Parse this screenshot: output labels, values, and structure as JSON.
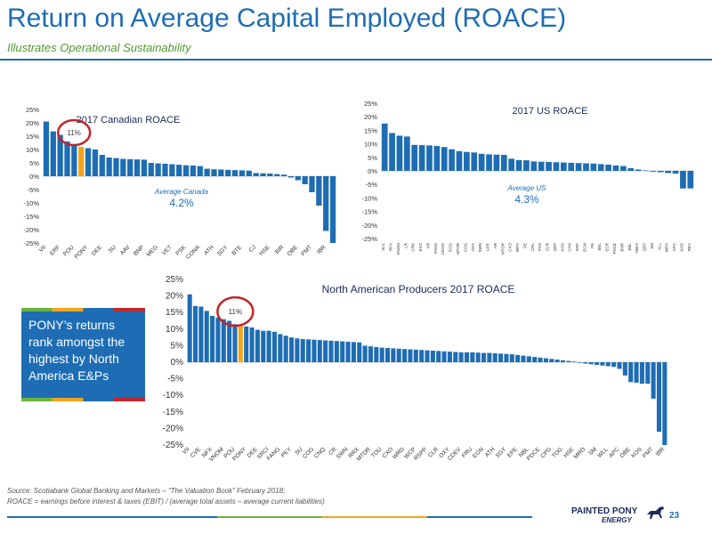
{
  "header": {
    "title": "Return on Average Capital Employed (ROACE)",
    "subtitle": "Illustrates Operational Sustainability"
  },
  "callout": {
    "text": "PONY’s returns rank amongst the highest by North America E&Ps"
  },
  "footer": {
    "source": "Source: Scotiabank Global Banking and Markets – “The Valuation Book” February 2018;",
    "definition": "ROACE = earnings before interest & taxes (EBIT) / (average total assets – average current liabilities)",
    "logo_main": "PAINTED PONY",
    "logo_sub": "ENERGY",
    "page_number": "23"
  },
  "colors": {
    "bar": "#1e6db4",
    "highlight": "#f2a51c",
    "circle": "#c0262d",
    "accent_green": "#6cb33e"
  },
  "chart_data": [
    {
      "type": "bar",
      "title": "2017 Canadian ROACE",
      "yticks": [
        "25%",
        "20%",
        "15%",
        "10%",
        "5%",
        "0%",
        "-5%",
        "-10%",
        "-15%",
        "-20%",
        "-25%"
      ],
      "ylim": [
        -25,
        25
      ],
      "highlight_index": 5,
      "highlight_label": "11%",
      "average_label": "Average Canada",
      "average_value": "4.2%",
      "xtick_labels": [
        {
          "index": 0,
          "label": "VII"
        },
        {
          "index": 2,
          "label": "ERF"
        },
        {
          "index": 4,
          "label": "POU"
        },
        {
          "index": 6,
          "label": "PONY"
        },
        {
          "index": 8,
          "label": "DEE"
        },
        {
          "index": 10,
          "label": "SU"
        },
        {
          "index": 12,
          "label": "AAV"
        },
        {
          "index": 14,
          "label": "BNP"
        },
        {
          "index": 16,
          "label": "MEG"
        },
        {
          "index": 18,
          "label": "VET"
        },
        {
          "index": 20,
          "label": "PSK"
        },
        {
          "index": 22,
          "label": "CONA"
        },
        {
          "index": 24,
          "label": "ATH"
        },
        {
          "index": 26,
          "label": "SGY"
        },
        {
          "index": 28,
          "label": "BTE"
        },
        {
          "index": 30,
          "label": "CJ"
        },
        {
          "index": 32,
          "label": "HSE"
        },
        {
          "index": 34,
          "label": "BIR"
        },
        {
          "index": 36,
          "label": "OBE"
        },
        {
          "index": 38,
          "label": "PMT"
        },
        {
          "index": 40,
          "label": "IBR"
        }
      ],
      "values": [
        20.5,
        16.8,
        15.5,
        13,
        11.5,
        11,
        10.5,
        10,
        8,
        7,
        6.8,
        6.5,
        6.4,
        6.3,
        6.2,
        5,
        4.8,
        4.7,
        4.5,
        4.3,
        4.1,
        4,
        3.8,
        2.8,
        2.6,
        2.5,
        2.4,
        2.3,
        2.2,
        2.1,
        1.2,
        1.1,
        1,
        0.8,
        0.6,
        -0.5,
        -1.5,
        -3,
        -6,
        -11,
        -20.5,
        -25
      ]
    },
    {
      "type": "bar",
      "title": "2017 US ROACE",
      "yticks": [
        "25%",
        "20%",
        "15%",
        "10%",
        "5%",
        "0%",
        "-5%",
        "-10%",
        "-15%",
        "-20%",
        "-25%"
      ],
      "ylim": [
        -25,
        25
      ],
      "average_label": "Average US",
      "average_value": "4.3%",
      "categories": [
        "VLC",
        "RFX",
        "VNOM",
        "LR",
        "CRK",
        "EXO",
        "AR",
        "FANG",
        "CEOG",
        "EOG",
        "GPOR",
        "COG",
        "OXY",
        "SWN",
        "CPE",
        "AR",
        "MTDR",
        "CXO",
        "WPX",
        "PE",
        "CRL",
        "PXD",
        "CLR",
        "QEP",
        "KOS",
        "CHV",
        "ERF",
        "EGN",
        "PE",
        "BEL",
        "ECR",
        "PDCE",
        "BNR",
        "BBL",
        "NBIO",
        "QEP",
        "SM",
        "XLL",
        "WPX",
        "APC",
        "KOS",
        "REY"
      ],
      "values": [
        17.5,
        14,
        13,
        12.7,
        9.6,
        9.5,
        9.4,
        9.2,
        8.8,
        8,
        7.3,
        7,
        6.8,
        6.3,
        6.1,
        6,
        5.9,
        4.5,
        4,
        3.9,
        3.5,
        3.4,
        3.3,
        3.2,
        3.1,
        3,
        2.9,
        2.8,
        2.7,
        2.5,
        2.3,
        2,
        1.8,
        1,
        0.5,
        0.2,
        -0.3,
        -0.5,
        -0.8,
        -1,
        -6.5,
        -6.5
      ]
    },
    {
      "type": "bar",
      "title": "North American Producers 2017 ROACE",
      "yticks": [
        "25%",
        "20%",
        "15%",
        "10%",
        "5%",
        "0%",
        "-5%",
        "-10%",
        "-15%",
        "-20%",
        "-25%"
      ],
      "ylim": [
        -25,
        25
      ],
      "highlight_index": 9,
      "highlight_label": "11%",
      "xtick_labels": [
        {
          "index": 0,
          "label": "VII"
        },
        {
          "index": 2,
          "label": "CVE"
        },
        {
          "index": 4,
          "label": "NFX"
        },
        {
          "index": 6,
          "label": "VNOM"
        },
        {
          "index": 8,
          "label": "POU"
        },
        {
          "index": 10,
          "label": "PONY"
        },
        {
          "index": 12,
          "label": "DEE"
        },
        {
          "index": 14,
          "label": "SRCI"
        },
        {
          "index": 16,
          "label": "FANG"
        },
        {
          "index": 18,
          "label": "PEY"
        },
        {
          "index": 20,
          "label": "SU"
        },
        {
          "index": 22,
          "label": "COG"
        },
        {
          "index": 24,
          "label": "CNQ"
        },
        {
          "index": 26,
          "label": "CR"
        },
        {
          "index": 28,
          "label": "SWN"
        },
        {
          "index": 30,
          "label": "RRX"
        },
        {
          "index": 32,
          "label": "MTDR"
        },
        {
          "index": 34,
          "label": "TOU"
        },
        {
          "index": 36,
          "label": "CXO"
        },
        {
          "index": 38,
          "label": "WRD"
        },
        {
          "index": 40,
          "label": "WCP"
        },
        {
          "index": 42,
          "label": "RSPP"
        },
        {
          "index": 44,
          "label": "CLR"
        },
        {
          "index": 46,
          "label": "OXY"
        },
        {
          "index": 48,
          "label": "CDEV"
        },
        {
          "index": 50,
          "label": "FRU"
        },
        {
          "index": 52,
          "label": "EGN"
        },
        {
          "index": 54,
          "label": "ATH"
        },
        {
          "index": 56,
          "label": "SGY"
        },
        {
          "index": 58,
          "label": "EPE"
        },
        {
          "index": 60,
          "label": "NBL"
        },
        {
          "index": 62,
          "label": "PDCE"
        },
        {
          "index": 64,
          "label": "CPG"
        },
        {
          "index": 66,
          "label": "TOG"
        },
        {
          "index": 68,
          "label": "HSE"
        },
        {
          "index": 70,
          "label": "MRO"
        },
        {
          "index": 72,
          "label": "SM"
        },
        {
          "index": 74,
          "label": "WLL"
        },
        {
          "index": 76,
          "label": "APC"
        },
        {
          "index": 78,
          "label": "OBE"
        },
        {
          "index": 80,
          "label": "KOS"
        },
        {
          "index": 82,
          "label": "PMT"
        },
        {
          "index": 84,
          "label": "IBR"
        }
      ],
      "values": [
        20.5,
        17,
        16.8,
        15.5,
        14,
        13.5,
        13,
        12.5,
        11.5,
        11,
        10.8,
        10.5,
        9.8,
        9.5,
        9.5,
        9.2,
        8.5,
        8,
        7.5,
        7.2,
        7,
        6.9,
        6.8,
        6.7,
        6.6,
        6.5,
        6.4,
        6.3,
        6.2,
        6.1,
        6,
        5,
        4.8,
        4.6,
        4.4,
        4.3,
        4.2,
        4.1,
        4,
        3.9,
        3.8,
        3.7,
        3.6,
        3.5,
        3.4,
        3.3,
        3.2,
        3.1,
        3,
        3,
        3,
        2.9,
        2.8,
        2.8,
        2.7,
        2.6,
        2.5,
        2.4,
        2.2,
        2,
        1.8,
        1.6,
        1.4,
        1.2,
        1,
        0.8,
        0.6,
        0.4,
        0.2,
        -0.2,
        -0.4,
        -0.6,
        -0.8,
        -1,
        -1.2,
        -1.4,
        -2,
        -4,
        -6,
        -6.2,
        -6.5,
        -6.5,
        -11,
        -21,
        -25
      ]
    }
  ]
}
